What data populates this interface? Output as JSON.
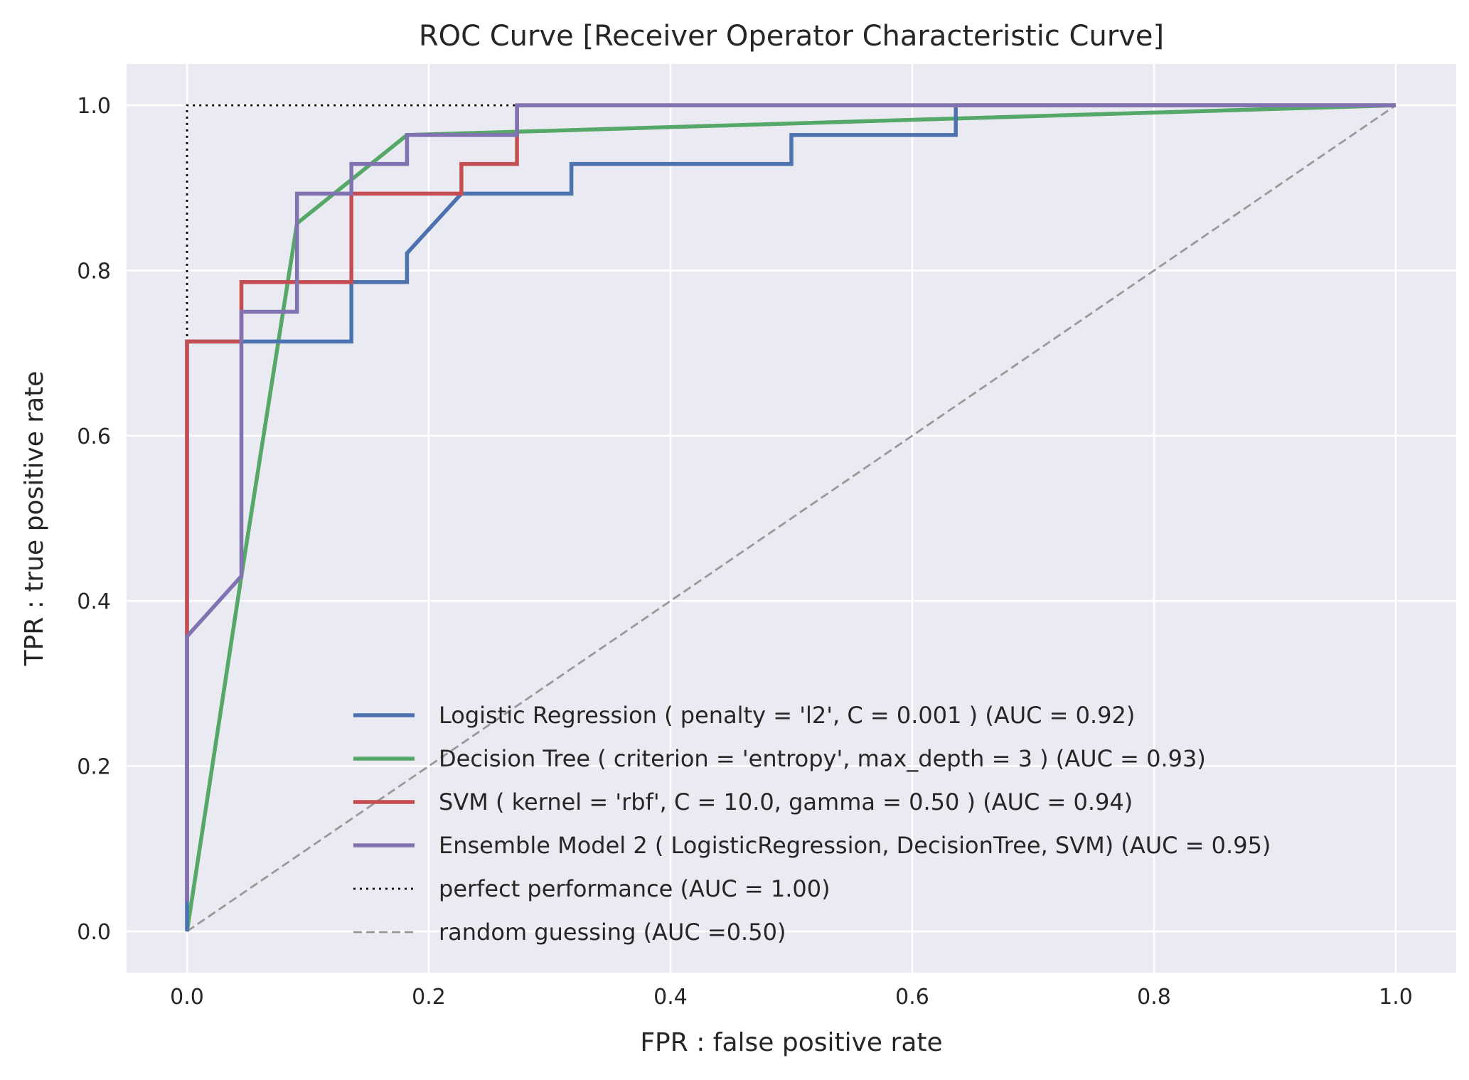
{
  "chart_data": {
    "type": "line",
    "title": "ROC Curve [Receiver Operator Characteristic Curve]",
    "xlabel": "FPR : false positive rate",
    "ylabel": "TPR : true positive rate",
    "xlim": [
      -0.05,
      1.05
    ],
    "ylim": [
      -0.05,
      1.05
    ],
    "xticks": [
      0.0,
      0.2,
      0.4,
      0.6,
      0.8,
      1.0
    ],
    "xtick_labels": [
      "0.0",
      "0.2",
      "0.4",
      "0.6",
      "0.8",
      "1.0"
    ],
    "yticks": [
      0.0,
      0.2,
      0.4,
      0.6,
      0.8,
      1.0
    ],
    "ytick_labels": [
      "0.0",
      "0.2",
      "0.4",
      "0.6",
      "0.8",
      "1.0"
    ],
    "grid": true,
    "background": "#eaeaf2",
    "legend_position": "lower-right",
    "series": [
      {
        "name": "Logistic Regression ( penalty = 'l2', C = 0.001 ) (AUC = 0.92)",
        "color": "#4c72b0",
        "style": "solid",
        "x": [
          0,
          0,
          0,
          0.136,
          0.136,
          0.182,
          0.182,
          0.227,
          0.318,
          0.318,
          0.5,
          0.5,
          0.636,
          0.636,
          1.0
        ],
        "y": [
          0,
          0.036,
          0.714,
          0.714,
          0.786,
          0.786,
          0.821,
          0.893,
          0.893,
          0.929,
          0.929,
          0.964,
          0.964,
          1.0,
          1.0
        ]
      },
      {
        "name": "Decision Tree ( criterion = 'entropy', max_depth = 3 ) (AUC = 0.93)",
        "color": "#55a868",
        "style": "solid",
        "x": [
          0,
          0.045,
          0.091,
          0.182,
          1.0
        ],
        "y": [
          0,
          0.43,
          0.857,
          0.964,
          1.0
        ]
      },
      {
        "name": "SVM ( kernel = 'rbf', C = 10.0, gamma = 0.50 ) (AUC = 0.94)",
        "color": "#c44e52",
        "style": "solid",
        "x": [
          0,
          0,
          0.045,
          0.045,
          0.136,
          0.136,
          0.227,
          0.227,
          0.273,
          0.273,
          1.0
        ],
        "y": [
          0.036,
          0.714,
          0.714,
          0.786,
          0.786,
          0.893,
          0.893,
          0.929,
          0.929,
          1.0,
          1.0
        ]
      },
      {
        "name": "Ensemble Model 2 ( LogisticRegression, DecisionTree, SVM) (AUC = 0.95)",
        "color": "#8172b2",
        "style": "solid",
        "x": [
          0,
          0,
          0.045,
          0.045,
          0.091,
          0.091,
          0.136,
          0.136,
          0.182,
          0.182,
          0.273,
          0.273,
          1.0
        ],
        "y": [
          0.036,
          0.357,
          0.43,
          0.75,
          0.75,
          0.893,
          0.893,
          0.929,
          0.929,
          0.964,
          0.964,
          1.0,
          1.0
        ]
      },
      {
        "name": "perfect performance (AUC = 1.00)",
        "color": "#000000",
        "style": "dotted",
        "x": [
          0,
          0,
          1.0
        ],
        "y": [
          0,
          1.0,
          1.0
        ]
      },
      {
        "name": "random guessing (AUC =0.50)",
        "color": "#999999",
        "style": "dashed",
        "x": [
          0,
          1.0
        ],
        "y": [
          0,
          1.0
        ]
      }
    ]
  }
}
